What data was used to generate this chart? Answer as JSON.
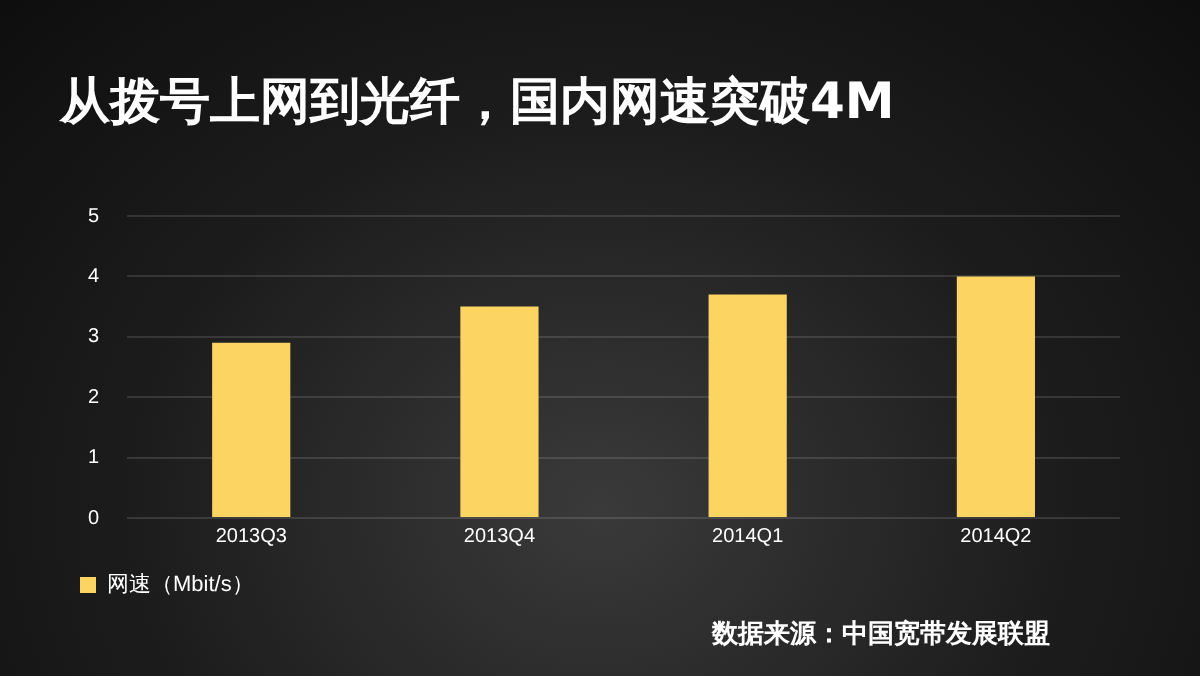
{
  "chart_data": {
    "type": "bar",
    "title": "从拨号上网到光纤，国内网速突破4M",
    "categories": [
      "2013Q3",
      "2013Q4",
      "2014Q1",
      "2014Q2"
    ],
    "series": [
      {
        "name": "网速（Mbit/s）",
        "color": "#fcd462",
        "values": [
          2.9,
          3.5,
          3.7,
          4.0
        ]
      }
    ],
    "ylim": [
      0,
      5
    ],
    "yticks": [
      0,
      1,
      2,
      3,
      4,
      5
    ],
    "grid": "y",
    "legend": "bottom left",
    "annotations": [
      "数据来源：中国宽带发展联盟"
    ]
  }
}
